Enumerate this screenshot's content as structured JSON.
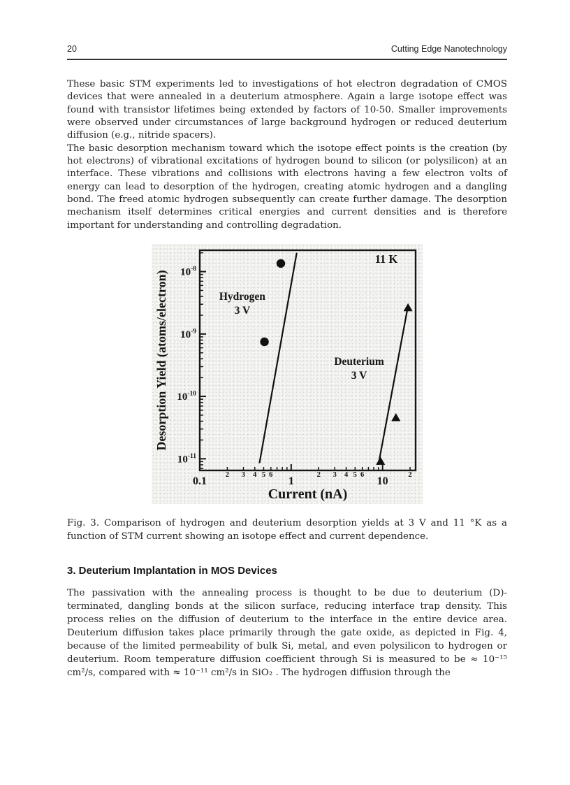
{
  "header": {
    "page_number": "20",
    "running_title": "Cutting Edge Nanotechnology"
  },
  "paragraphs": {
    "p1": "These basic STM experiments led to investigations of hot electron degradation of CMOS devices that were annealed in a deuterium atmosphere. Again a large isotope effect was found with transistor lifetimes being extended by factors of 10-50. Smaller improvements were observed under circumstances of large background hydrogen or reduced deuterium diffusion (e.g., nitride spacers).",
    "p2": "The basic desorption mechanism toward which the isotope effect points is the creation (by hot electrons) of vibrational excitations of hydrogen bound to silicon (or polysilicon) at an interface. These vibrations and collisions with electrons having a few electron volts of energy can lead to desorption of the hydrogen, creating atomic hydrogen and a dangling bond. The freed atomic hydrogen subsequently can create further damage. The desorption mechanism itself determines critical energies and current densities and is therefore important for understanding and controlling degradation.",
    "p3": "The passivation with the annealing process is thought to be due to deuterium (D)-terminated, dangling bonds at the silicon surface, reducing interface trap density. This process relies on the diffusion of deuterium to the interface in the entire device area. Deuterium diffusion takes place primarily through the gate oxide, as depicted in Fig. 4, because of the limited permeability of bulk Si, metal, and even polysilicon to hydrogen or deuterium. Room temperature diffusion coefficient through Si is measured to be ≈ 10⁻¹⁵ cm²/s, compared with ≈ 10⁻¹¹ cm²/s in SiO₂ . The hydrogen diffusion through the"
  },
  "figure_caption": "Fig. 3. Comparison of hydrogen and deuterium desorption yields at 3 V and 11 °K as a function of STM current showing an isotope effect and current dependence.",
  "section_heading": "3. Deuterium Implantation in MOS Devices",
  "chart_data": {
    "type": "scatter",
    "title": "",
    "xlabel": "Current (nA)",
    "ylabel": "Desorption Yield (atoms/electron)",
    "x_scale": "log",
    "y_scale": "log",
    "xlim": [
      0.1,
      23
    ],
    "ylim": [
      6.5e-12,
      2.2e-08
    ],
    "grid": false,
    "plot_frame": true,
    "legend_position": "in-plot text labels",
    "ink_color": "#161616",
    "x_major_ticks": [
      0.1,
      1,
      10
    ],
    "x_major_labels": [
      "0.1",
      "1",
      "10"
    ],
    "x_minor_labeled_values": [
      0.2,
      0.3,
      0.4,
      0.5,
      0.6,
      2,
      3,
      4,
      5,
      6,
      20
    ],
    "y_major_exponents": [
      -8,
      -9,
      -10,
      -11
    ],
    "annotations": [
      {
        "lines": [
          "11 K"
        ],
        "fx": 0.864,
        "fy": 0.057,
        "size": 16.5
      },
      {
        "lines": [
          "Hydrogen",
          "3 V"
        ],
        "fx": 0.197,
        "fy": 0.225,
        "size": 15.5
      },
      {
        "lines": [
          "Deuterium",
          "3 V"
        ],
        "fx": 0.738,
        "fy": 0.52,
        "size": 15.5
      }
    ],
    "series": [
      {
        "name": "Hydrogen 3 V",
        "marker": "circle",
        "color": "#111111",
        "points": [
          [
            0.77,
            1.35e-08
          ],
          [
            0.51,
            7.5e-10
          ]
        ],
        "fit_line": {
          "x1": 0.45,
          "y1": 8.5e-12,
          "x2": 1.15,
          "y2": 2e-08
        }
      },
      {
        "name": "Deuterium 3 V",
        "marker": "triangle",
        "color": "#111111",
        "points": [
          [
            9.5,
            9e-12
          ],
          [
            14,
            4.5e-11
          ],
          [
            19,
            2.6e-09
          ]
        ],
        "fit_line": {
          "x1": 9.0,
          "y1": 8e-12,
          "x2": 18.6,
          "y2": 2.4e-09
        }
      }
    ]
  }
}
